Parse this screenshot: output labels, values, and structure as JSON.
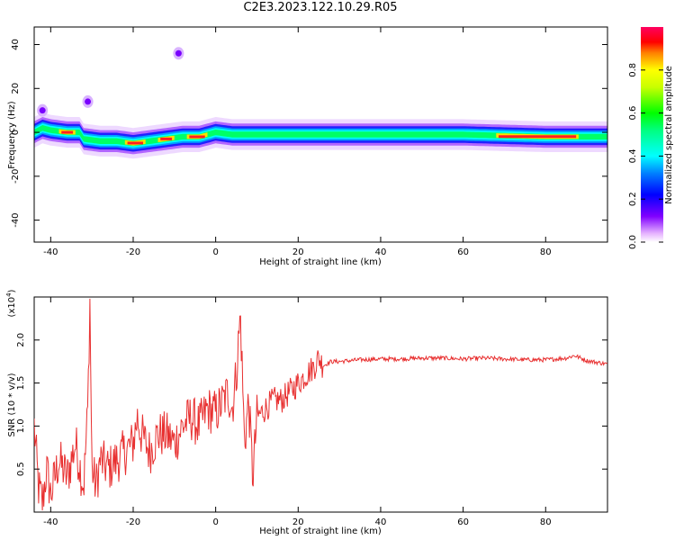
{
  "title": "C2E3.2023.122.10.29.R05",
  "chart_data": [
    {
      "type": "heatmap",
      "xlabel": "Height of straight line (km)",
      "ylabel": "Frequency (Hz)",
      "xlim": [
        -44,
        95
      ],
      "ylim": [
        -50,
        48
      ],
      "xticks": [
        -40,
        -20,
        0,
        20,
        40,
        60,
        80
      ],
      "yticks": [
        40,
        20,
        0,
        -20,
        -40
      ],
      "colorbar": {
        "label": "Normalized spectral amplitude",
        "range": [
          0.0,
          1.0
        ],
        "ticks": [
          "0.0",
          "0.2",
          "0.4",
          "0.6",
          "0.8"
        ],
        "colormap": "rainbow (white-violet-blue-cyan-green-yellow-red)"
      },
      "ridge_center_hz": [
        [
          -44,
          0
        ],
        [
          -42,
          2
        ],
        [
          -40,
          1
        ],
        [
          -36,
          0
        ],
        [
          -33,
          0
        ],
        [
          -32,
          -3
        ],
        [
          -28,
          -4
        ],
        [
          -24,
          -4
        ],
        [
          -20,
          -5
        ],
        [
          -16,
          -4
        ],
        [
          -12,
          -3
        ],
        [
          -8,
          -2
        ],
        [
          -4,
          -2
        ],
        [
          0,
          0
        ],
        [
          4,
          -1
        ],
        [
          8,
          -1
        ],
        [
          12,
          -1
        ],
        [
          20,
          -1
        ],
        [
          40,
          -1
        ],
        [
          60,
          -1
        ],
        [
          80,
          -2
        ],
        [
          95,
          -2
        ]
      ],
      "high_amplitude_segments_km": [
        [
          -38,
          -34
        ],
        [
          -22,
          -17
        ],
        [
          -14,
          -10
        ],
        [
          -7,
          -2
        ],
        [
          68,
          88
        ]
      ],
      "secondary_blobs": [
        [
          -42,
          10
        ],
        [
          -31,
          14
        ],
        [
          -9,
          36
        ]
      ]
    },
    {
      "type": "line",
      "xlabel": "Height of straight line (km)",
      "ylabel": "SNR (10 * v/v)",
      "y_multiplier": "(x10^4)",
      "y_multiplier_base": "(x10",
      "y_multiplier_exp": "4",
      "y_multiplier_close": ")",
      "xlim": [
        -44,
        95
      ],
      "ylim": [
        0.0,
        2.5
      ],
      "xticks": [
        -40,
        -20,
        0,
        20,
        40,
        60,
        80
      ],
      "yticks": [
        "0.5",
        "1.0",
        "1.5",
        "2.0"
      ],
      "color": "#e83030",
      "series": [
        {
          "x": [
            -44,
            -43,
            -42,
            -41,
            -40,
            -38,
            -36,
            -34,
            -32,
            -31,
            -30.5,
            -30,
            -29,
            -28,
            -26,
            -24,
            -22,
            -20,
            -19,
            -18,
            -16,
            -14,
            -12,
            -10,
            -8,
            -6,
            -4,
            -2,
            0,
            2,
            3,
            4,
            5,
            6,
            7,
            8,
            9,
            10,
            12,
            14,
            16,
            18,
            20,
            22,
            24,
            25,
            26,
            28,
            30,
            35,
            40,
            45,
            50,
            55,
            60,
            65,
            70,
            75,
            80,
            85,
            87,
            90,
            95
          ],
          "y": [
            1.0,
            0.3,
            0.1,
            0.5,
            0.2,
            0.6,
            0.4,
            0.8,
            0.3,
            1.2,
            2.45,
            0.5,
            0.3,
            0.6,
            0.5,
            0.6,
            0.7,
            0.8,
            1.1,
            0.9,
            0.7,
            0.9,
            0.9,
            0.8,
            1.0,
            1.1,
            1.0,
            1.2,
            1.15,
            1.3,
            1.4,
            1.2,
            1.6,
            2.3,
            0.8,
            1.3,
            0.4,
            1.1,
            1.2,
            1.3,
            1.3,
            1.4,
            1.5,
            1.6,
            1.7,
            1.8,
            1.7,
            1.75,
            1.75,
            1.77,
            1.78,
            1.78,
            1.79,
            1.79,
            1.78,
            1.79,
            1.78,
            1.77,
            1.77,
            1.79,
            1.82,
            1.76,
            1.72
          ]
        }
      ]
    }
  ],
  "colors": {
    "snr_line": "#e83030",
    "background": "#ffffff",
    "axes": "#000000"
  }
}
